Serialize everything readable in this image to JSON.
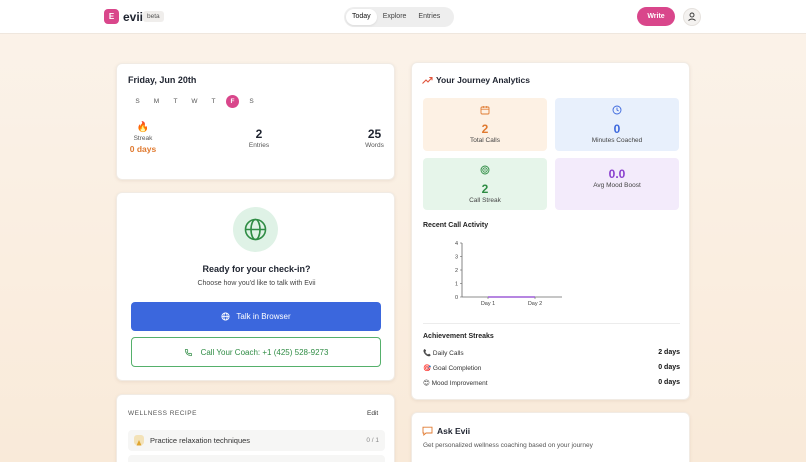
{
  "header": {
    "logo_letter": "E",
    "app_name": "evii",
    "badge": "beta",
    "tabs": [
      {
        "label": "Today",
        "active": true
      },
      {
        "label": "Explore",
        "active": false
      },
      {
        "label": "Entries",
        "active": false
      }
    ],
    "write_label": "Write",
    "accent": "#d9468b"
  },
  "today": {
    "date": "Friday, Jun 20th",
    "weekdays": [
      {
        "label": "S",
        "active": false
      },
      {
        "label": "M",
        "active": false
      },
      {
        "label": "T",
        "active": false
      },
      {
        "label": "W",
        "active": false
      },
      {
        "label": "T",
        "active": false
      },
      {
        "label": "F",
        "active": true
      },
      {
        "label": "S",
        "active": false
      }
    ],
    "streak_label": "Streak",
    "streak_value": "0 days",
    "entries_value": "2",
    "entries_label": "Entries",
    "words_value": "25",
    "words_label": "Words"
  },
  "checkin": {
    "title": "Ready for your check-in?",
    "subtitle": "Choose how you'd like to talk with Evii",
    "browser_button": "Talk in Browser",
    "call_button": "Call Your Coach: +1 (425) 528-9273"
  },
  "recipe": {
    "title": "WELLNESS RECIPE",
    "edit_label": "Edit",
    "items": [
      {
        "text": "Practice relaxation techniques",
        "count": "0 / 1"
      }
    ]
  },
  "analytics": {
    "title": "Your Journey Analytics",
    "tiles": [
      {
        "value": "2",
        "label": "Total Calls",
        "color": "#e07a30",
        "bg": "#fdf1e4"
      },
      {
        "value": "0",
        "label": "Minutes Coached",
        "color": "#3b67dd",
        "bg": "#e8f0fc"
      },
      {
        "value": "2",
        "label": "Call Streak",
        "color": "#2f8c44",
        "bg": "#e6f5ea"
      },
      {
        "value": "0.0",
        "label": "Avg Mood Boost",
        "color": "#8a3fcf",
        "bg": "#f3ebfb"
      }
    ],
    "recent_label": "Recent Call Activity",
    "achievements_label": "Achievement Streaks",
    "achievements": [
      {
        "icon": "📞",
        "name": "Daily Calls",
        "value": "2 days"
      },
      {
        "icon": "🎯",
        "name": "Goal Completion",
        "value": "0 days"
      },
      {
        "icon": "😊",
        "name": "Mood Improvement",
        "value": "0 days"
      }
    ]
  },
  "chart_data": {
    "type": "line",
    "title": "Recent Call Activity",
    "categories": [
      "Day 1",
      "Day 2"
    ],
    "y_ticks": [
      "0",
      "1",
      "2",
      "3",
      "4"
    ],
    "ylim": [
      0,
      4
    ],
    "series": [
      {
        "values": [
          0,
          0
        ]
      }
    ],
    "grid": false
  },
  "ask": {
    "title": "Ask Evii",
    "subtitle": "Get personalized wellness coaching based on your journey"
  }
}
